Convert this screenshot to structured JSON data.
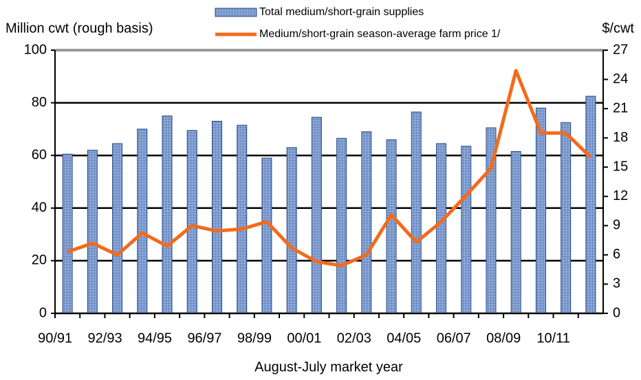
{
  "chart_data": {
    "type": "bar-line",
    "y_label": "Million cwt (rough basis)",
    "y2_label": "$/cwt",
    "x_label": "August-July market year",
    "categories": [
      "90/91",
      null,
      "92/93",
      null,
      "94/95",
      null,
      "96/97",
      null,
      "98/99",
      null,
      "00/01",
      null,
      "02/03",
      null,
      "04/05",
      null,
      "06/07",
      null,
      "08/09",
      null,
      "10/11",
      null
    ],
    "series": [
      {
        "name": "Total medium/short-grain supplies",
        "type": "bar",
        "color": "#7f9ccf",
        "values": [
          60.5,
          62,
          64.5,
          70,
          75,
          69.5,
          73,
          71.5,
          59,
          63,
          74.5,
          66.5,
          69,
          66,
          76.5,
          64.5,
          63.5,
          70.5,
          61.5,
          78,
          72.5,
          82.5
        ]
      },
      {
        "name": "Medium/short-grain season-average farm price 1/",
        "type": "line",
        "axis": "y2",
        "color": "#f26b1d",
        "values": [
          6.3,
          7.2,
          6.0,
          8.25,
          6.9,
          9.0,
          8.45,
          8.65,
          9.4,
          6.7,
          5.3,
          4.9,
          6.0,
          10.1,
          7.3,
          9.4,
          12.1,
          14.9,
          24.9,
          18.5,
          18.5,
          16.0
        ]
      }
    ],
    "ylim": [
      0,
      100
    ],
    "yticks": [
      0,
      20,
      40,
      60,
      80,
      100
    ],
    "y2lim": [
      0,
      27
    ],
    "y2ticks": [
      0,
      3,
      6,
      9,
      12,
      15,
      18,
      21,
      24,
      27
    ],
    "grid": true,
    "legend": "top"
  }
}
